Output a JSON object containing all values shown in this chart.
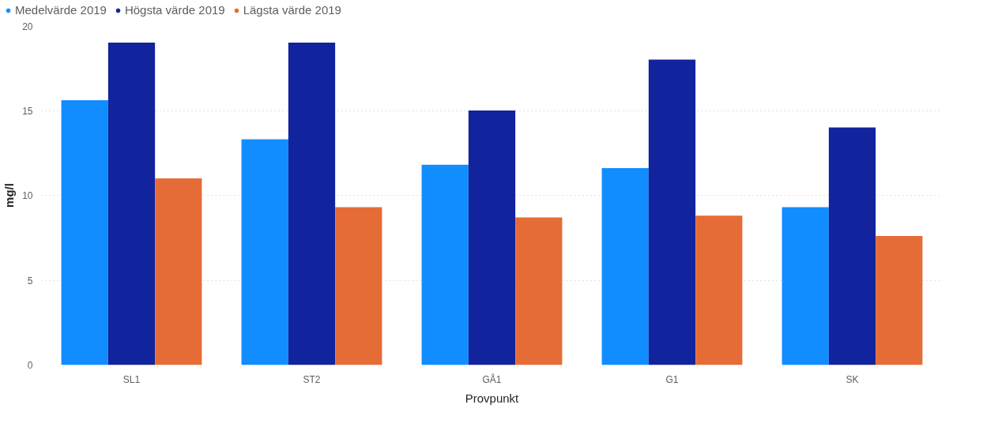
{
  "chart_data": {
    "type": "bar",
    "xlabel": "Provpunkt",
    "ylabel": "mg/l",
    "categories": [
      "SL1",
      "ST2",
      "GÅ1",
      "G1",
      "SK"
    ],
    "series": [
      {
        "name": "Medelvärde 2019",
        "color": "#118dff",
        "values": [
          15.6,
          13.3,
          11.8,
          11.6,
          9.3
        ]
      },
      {
        "name": "Högsta värde 2019",
        "color": "#12239e",
        "values": [
          19.0,
          19.0,
          15.0,
          18.0,
          14.0
        ]
      },
      {
        "name": "Lägsta värde 2019",
        "color": "#e66c37",
        "values": [
          11.0,
          9.3,
          8.7,
          8.8,
          7.6
        ]
      }
    ],
    "ylim": [
      0,
      20
    ],
    "yticks": [
      0,
      5,
      10,
      15,
      20
    ],
    "grid": "y",
    "legend": "top left"
  }
}
